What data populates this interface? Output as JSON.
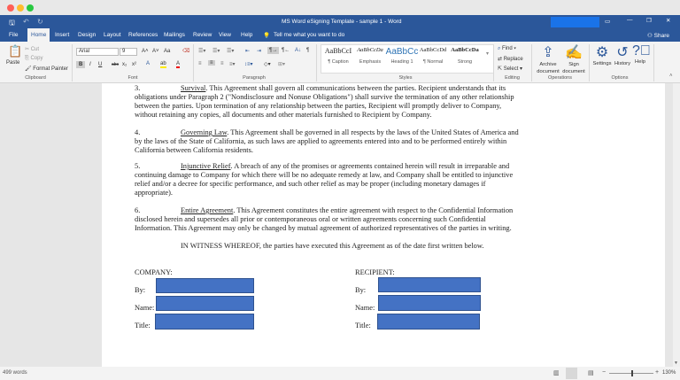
{
  "window": {
    "title": "MS Word eSigning Template - sample 1  -  Word"
  },
  "tabs": [
    "File",
    "Home",
    "Insert",
    "Design",
    "Layout",
    "References",
    "Mailings",
    "Review",
    "View",
    "Help"
  ],
  "active_tab": "Home",
  "tell_me": "Tell me what you want to do",
  "share": "Share",
  "clipboard": {
    "paste": "Paste",
    "cut": "Cut",
    "copy": "Copy",
    "format_painter": "Format Painter",
    "label": "Clipboard"
  },
  "font": {
    "name": "Arial",
    "size": "9",
    "label": "Font",
    "bold": "B",
    "italic": "I",
    "underline": "U",
    "strike": "abc",
    "sub": "x₂",
    "sup": "x²",
    "grow": "A˄",
    "shrink": "A˅",
    "case": "Aa"
  },
  "paragraph": {
    "label": "Paragraph"
  },
  "styles": {
    "label": "Styles",
    "items": [
      {
        "preview": "AaBbCcI",
        "name": "¶ Caption"
      },
      {
        "preview": "AaBbCcDa",
        "name": "Emphasis"
      },
      {
        "preview": "AaBbCc",
        "name": "Heading 1"
      },
      {
        "preview": "AaBbCcDd",
        "name": "¶ Normal"
      },
      {
        "preview": "AaBbCcDa",
        "name": "Strong"
      }
    ]
  },
  "editing": {
    "find": "Find",
    "replace": "Replace",
    "select": "Select",
    "label": "Editing"
  },
  "operations": {
    "archive": "Archive document",
    "sign": "Sign document",
    "label": "Operations"
  },
  "options": {
    "settings": "Settings",
    "history": "History",
    "help": "Help",
    "label": "Options"
  },
  "document": {
    "p3": {
      "num": "3.",
      "title": "Survival",
      "text": ".  This Agreement shall govern all communications between the parties.  Recipient understands that its obligations under Paragraph 2 (\"Nondisclosure and Nonuse Obligations\") shall survive the termination of any other relationship between the parties.  Upon termination of any relationship between the parties, Recipient will promptly deliver to Company, without retaining any copies, all documents and other materials furnished to Recipient by Company."
    },
    "p4": {
      "num": "4.",
      "title": "Governing Law",
      "text": ".  This Agreement shall be governed in all respects by the laws of the United States of America and by the laws of the State of California, as such laws are applied to agreements entered into and to be performed entirely within California between California residents."
    },
    "p5": {
      "num": "5.",
      "title": "Injunctive Relief",
      "text": ".  A breach of any of the promises or agreements contained herein will result in irreparable and continuing damage to Company for which there will be no adequate remedy at law, and Company shall be entitled to injunctive relief and/or a decree for specific performance, and such other relief as may be proper (including monetary damages if appropriate)."
    },
    "p6": {
      "num": "6.",
      "title": "Entire Agreement",
      "text": ".  This Agreement constitutes the entire agreement with respect to the Confidential Information disclosed herein and supersedes all prior or contemporaneous oral or written agreements concerning such Confidential Information.  This Agreement may only be changed by mutual agreement of authorized representatives of the parties in writing."
    },
    "witness": "IN WITNESS WHEREOF, the parties have executed this Agreement as of the date first written below.",
    "company": "COMPANY:",
    "recipient": "RECIPIENT:",
    "by": "By:",
    "name": "Name:",
    "title": "Title:"
  },
  "status": {
    "words": "499 words",
    "zoom": "130%"
  },
  "colors": {
    "brand": "#2b579a",
    "field": "#4472c4"
  }
}
